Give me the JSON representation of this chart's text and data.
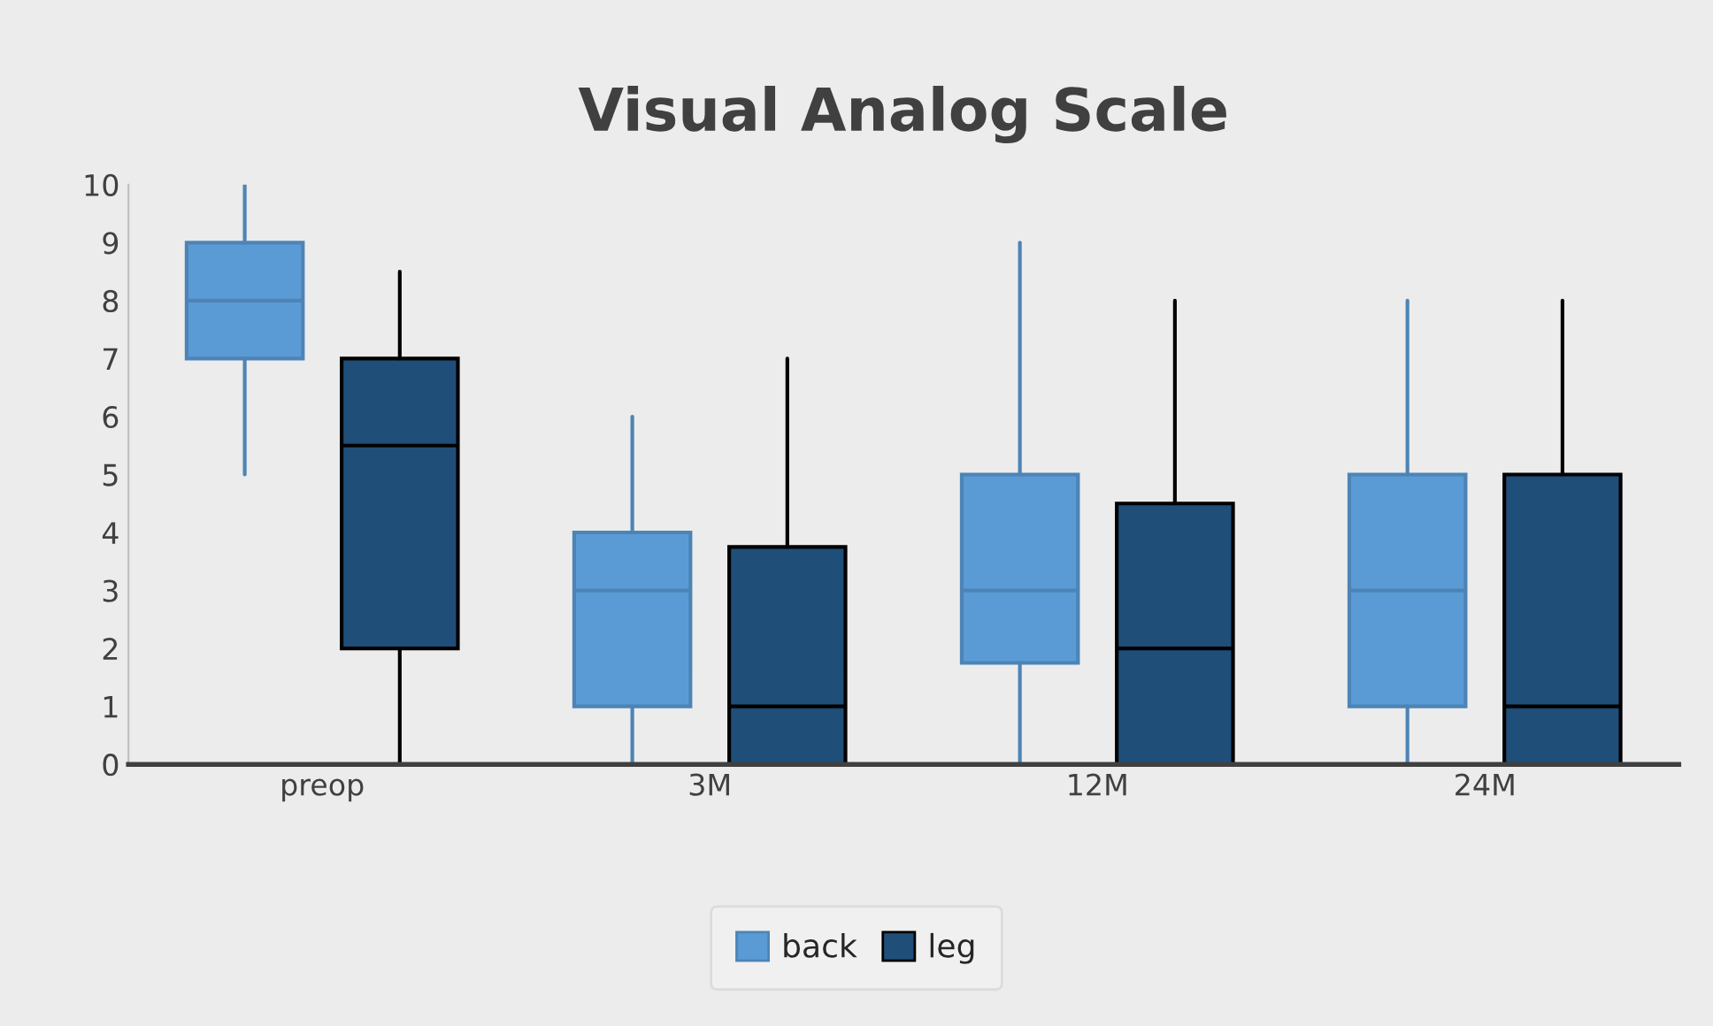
{
  "chart_data": {
    "type": "box",
    "title": "Visual Analog Scale",
    "categories": [
      "preop",
      "3M",
      "12M",
      "24M"
    ],
    "series": [
      {
        "name": "back",
        "color": "#5b9bd5",
        "boxes": [
          {
            "low": 5,
            "q1": 7,
            "median": 8,
            "q3": 9,
            "high": 10
          },
          {
            "low": 0,
            "q1": 1,
            "median": 3,
            "q3": 4,
            "high": 6
          },
          {
            "low": 0,
            "q1": 1.75,
            "median": 3,
            "q3": 5,
            "high": 9
          },
          {
            "low": 0,
            "q1": 1,
            "median": 3,
            "q3": 5,
            "high": 8
          }
        ]
      },
      {
        "name": "leg",
        "color": "#1f4e79",
        "boxes": [
          {
            "low": 0,
            "q1": 2,
            "median": 5.5,
            "q3": 7,
            "high": 8.5
          },
          {
            "low": 0,
            "q1": 0,
            "median": 1,
            "q3": 3.75,
            "high": 7
          },
          {
            "low": 0,
            "q1": 0,
            "median": 2,
            "q3": 4.5,
            "high": 8
          },
          {
            "low": 0,
            "q1": 0,
            "median": 1,
            "q3": 5,
            "high": 8
          }
        ]
      }
    ],
    "ylim": [
      0,
      10
    ],
    "yticks": [
      0,
      1,
      2,
      3,
      4,
      5,
      6,
      7,
      8,
      9,
      10
    ],
    "grid": false,
    "legend": "bottom"
  }
}
